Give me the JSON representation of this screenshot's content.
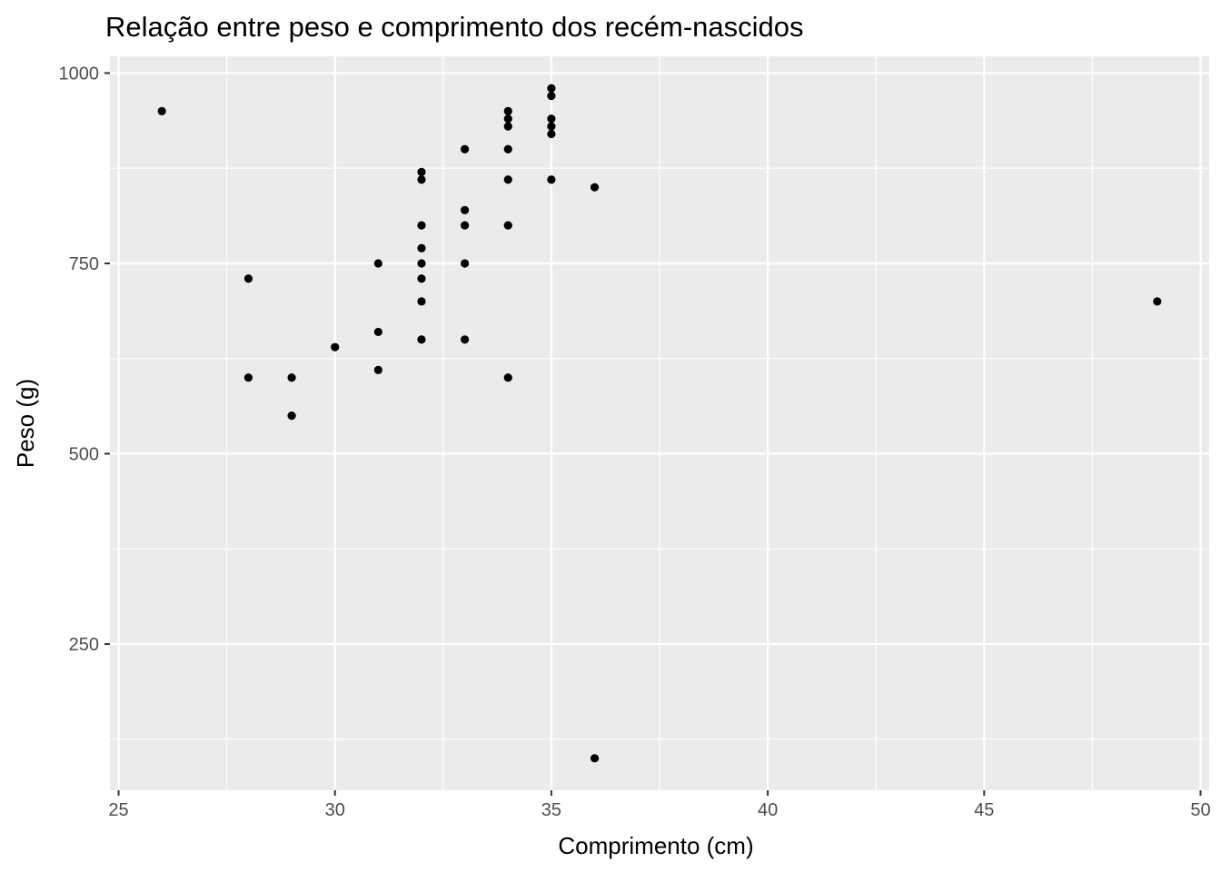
{
  "chart_data": {
    "type": "scatter",
    "title": "Relação entre peso e comprimento dos recém-nascidos",
    "xlabel": "Comprimento (cm)",
    "ylabel": "Peso (g)",
    "xlim": [
      24.8,
      50.2
    ],
    "ylim": [
      58,
      1022
    ],
    "x_ticks": [
      25,
      30,
      35,
      40,
      45,
      50
    ],
    "x_tick_labels": [
      "25",
      "30",
      "35",
      "40",
      "45",
      "50"
    ],
    "x_minor_ticks": [
      27.5,
      32.5,
      37.5,
      42.5,
      47.5
    ],
    "y_ticks": [
      250,
      500,
      750,
      1000
    ],
    "y_tick_labels": [
      "250",
      "500",
      "750",
      "1000"
    ],
    "y_minor_ticks": [
      125,
      375,
      625,
      875
    ],
    "grid": true,
    "colors": {
      "panel": "#ebebeb",
      "grid": "#ffffff",
      "point": "#000000",
      "tick": "#333333"
    },
    "points": [
      {
        "x": 26,
        "y": 950
      },
      {
        "x": 28,
        "y": 730
      },
      {
        "x": 28,
        "y": 600
      },
      {
        "x": 29,
        "y": 600
      },
      {
        "x": 29,
        "y": 550
      },
      {
        "x": 30,
        "y": 640
      },
      {
        "x": 31,
        "y": 750
      },
      {
        "x": 31,
        "y": 660
      },
      {
        "x": 31,
        "y": 610
      },
      {
        "x": 32,
        "y": 870
      },
      {
        "x": 32,
        "y": 860
      },
      {
        "x": 32,
        "y": 800
      },
      {
        "x": 32,
        "y": 770
      },
      {
        "x": 32,
        "y": 750
      },
      {
        "x": 32,
        "y": 730
      },
      {
        "x": 32,
        "y": 700
      },
      {
        "x": 32,
        "y": 650
      },
      {
        "x": 33,
        "y": 900
      },
      {
        "x": 33,
        "y": 820
      },
      {
        "x": 33,
        "y": 800
      },
      {
        "x": 33,
        "y": 750
      },
      {
        "x": 33,
        "y": 650
      },
      {
        "x": 34,
        "y": 950
      },
      {
        "x": 34,
        "y": 940
      },
      {
        "x": 34,
        "y": 930
      },
      {
        "x": 34,
        "y": 900
      },
      {
        "x": 34,
        "y": 860
      },
      {
        "x": 34,
        "y": 800
      },
      {
        "x": 34,
        "y": 600
      },
      {
        "x": 35,
        "y": 980
      },
      {
        "x": 35,
        "y": 970
      },
      {
        "x": 35,
        "y": 940
      },
      {
        "x": 35,
        "y": 930
      },
      {
        "x": 35,
        "y": 920
      },
      {
        "x": 35,
        "y": 860
      },
      {
        "x": 36,
        "y": 850
      },
      {
        "x": 36,
        "y": 100
      },
      {
        "x": 49,
        "y": 700
      }
    ]
  }
}
